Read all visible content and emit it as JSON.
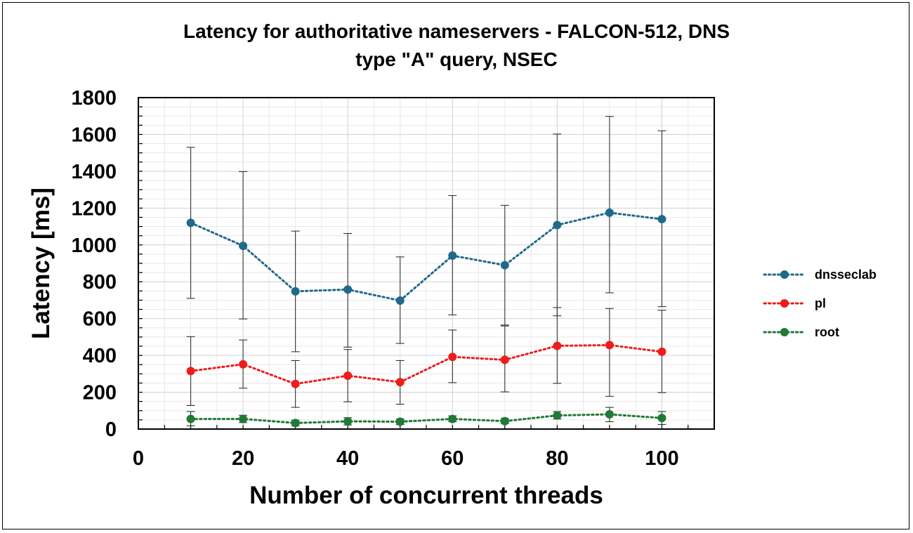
{
  "chart_data": {
    "type": "line",
    "title_lines": [
      "Latency for authoritative nameservers - FALCON-512, DNS",
      "type \"A\" query, NSEC"
    ],
    "xlabel": "Number of concurrent threads",
    "ylabel": "Latency [ms]",
    "xlim": [
      0,
      110
    ],
    "ylim": [
      0,
      1800
    ],
    "x_ticks": [
      "0",
      "20",
      "40",
      "60",
      "80",
      "100"
    ],
    "y_ticks": [
      "0",
      "200",
      "400",
      "600",
      "800",
      "1000",
      "1200",
      "1400",
      "1600",
      "1800"
    ],
    "x_tick_values": [
      0,
      20,
      40,
      60,
      80,
      100
    ],
    "y_tick_values": [
      0,
      200,
      400,
      600,
      800,
      1000,
      1200,
      1400,
      1600,
      1800
    ],
    "grid": true,
    "legend_position": "right",
    "x": [
      10,
      20,
      30,
      40,
      50,
      60,
      70,
      80,
      90,
      100
    ],
    "series": [
      {
        "name": "dnsseclab",
        "color": "#1f6a8a",
        "values": [
          1120,
          995,
          748,
          758,
          698,
          942,
          890,
          1108,
          1175,
          1140
        ],
        "error_low": [
          710,
          598,
          420,
          445,
          465,
          620,
          565,
          615,
          740,
          665
        ],
        "error_high": [
          1530,
          1398,
          1075,
          1062,
          935,
          1268,
          1215,
          1602,
          1698,
          1620
        ]
      },
      {
        "name": "pl",
        "color": "#ee1c1c",
        "values": [
          315,
          352,
          245,
          290,
          255,
          392,
          376,
          452,
          456,
          420
        ],
        "error_low": [
          128,
          222,
          118,
          148,
          135,
          252,
          202,
          248,
          178,
          198
        ],
        "error_high": [
          502,
          484,
          372,
          432,
          372,
          538,
          560,
          660,
          655,
          645
        ]
      },
      {
        "name": "root",
        "color": "#1e7a34",
        "values": [
          55,
          55,
          33,
          42,
          40,
          55,
          43,
          74,
          80,
          60
        ],
        "error_low": [
          18,
          35,
          18,
          22,
          25,
          40,
          30,
          55,
          40,
          25
        ],
        "error_high": [
          95,
          75,
          48,
          62,
          55,
          72,
          58,
          95,
          118,
          95
        ]
      }
    ]
  }
}
